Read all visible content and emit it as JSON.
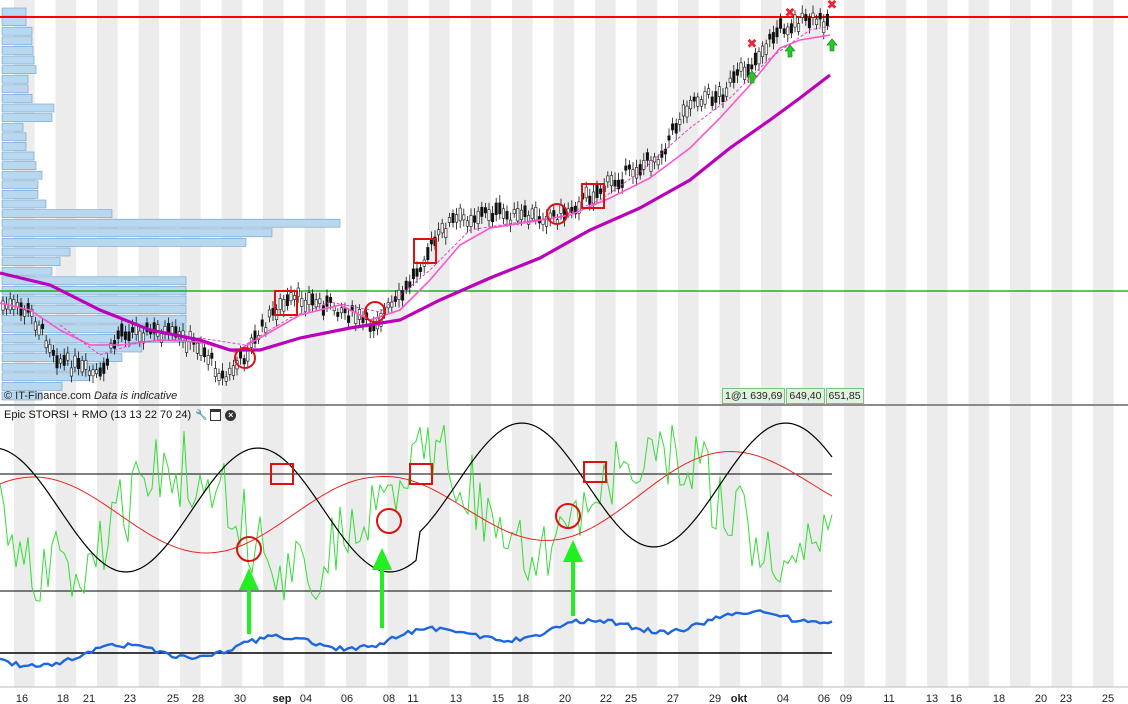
{
  "watermark": {
    "source": "© IT-Finance.com",
    "note": "Data is indicative"
  },
  "price_labels": [
    "1@1 639,69",
    "649,40",
    "651,85"
  ],
  "indicator": {
    "title": "Epic STORSI + RMO (13 13 22 70 24)",
    "tool_icons": [
      "wrench-icon",
      "window-icon",
      "close-icon"
    ]
  },
  "colors": {
    "resistance": "#ff0000",
    "support": "#00a000",
    "ma_fast": "#ff55cc",
    "ma_slow": "#bb00bb",
    "volume_profile": "#b8d8f0",
    "osc_green": "#33dd33",
    "osc_black": "#000000",
    "osc_red": "#ee2222",
    "osc_blue": "#1e66dd",
    "arrow_green": "#22ee22",
    "marker_red": "#dd1111"
  },
  "chart_data": [
    {
      "type": "candlestick",
      "title": "",
      "series": [
        {
          "name": "",
          "values": []
        },
        {
          "name": "",
          "values": []
        }
      ],
      "horizontal_lines": [
        {
          "color": "red",
          "role": "resistance"
        },
        {
          "color": "green",
          "role": "support"
        }
      ],
      "grid": "vertical alternating bands",
      "x_tick_labels": [
        "16",
        "18",
        "21",
        "23",
        "25",
        "28",
        "30",
        "sep",
        "04",
        "06",
        "08",
        "11",
        "13",
        "15",
        "18",
        "20",
        "22",
        "25",
        "27",
        "29",
        "okt",
        "04",
        "06",
        "09",
        "11",
        "13",
        "16",
        "18",
        "20",
        "23",
        "25"
      ]
    },
    {
      "type": "line",
      "title": "Epic STORSI + RMO (13 13 22 70 24)",
      "series": [
        {
          "name": "",
          "color": "green"
        },
        {
          "name": "",
          "color": "black"
        },
        {
          "name": "",
          "color": "red"
        },
        {
          "name": "",
          "color": "blue"
        }
      ],
      "horizontal_levels": 3
    }
  ]
}
